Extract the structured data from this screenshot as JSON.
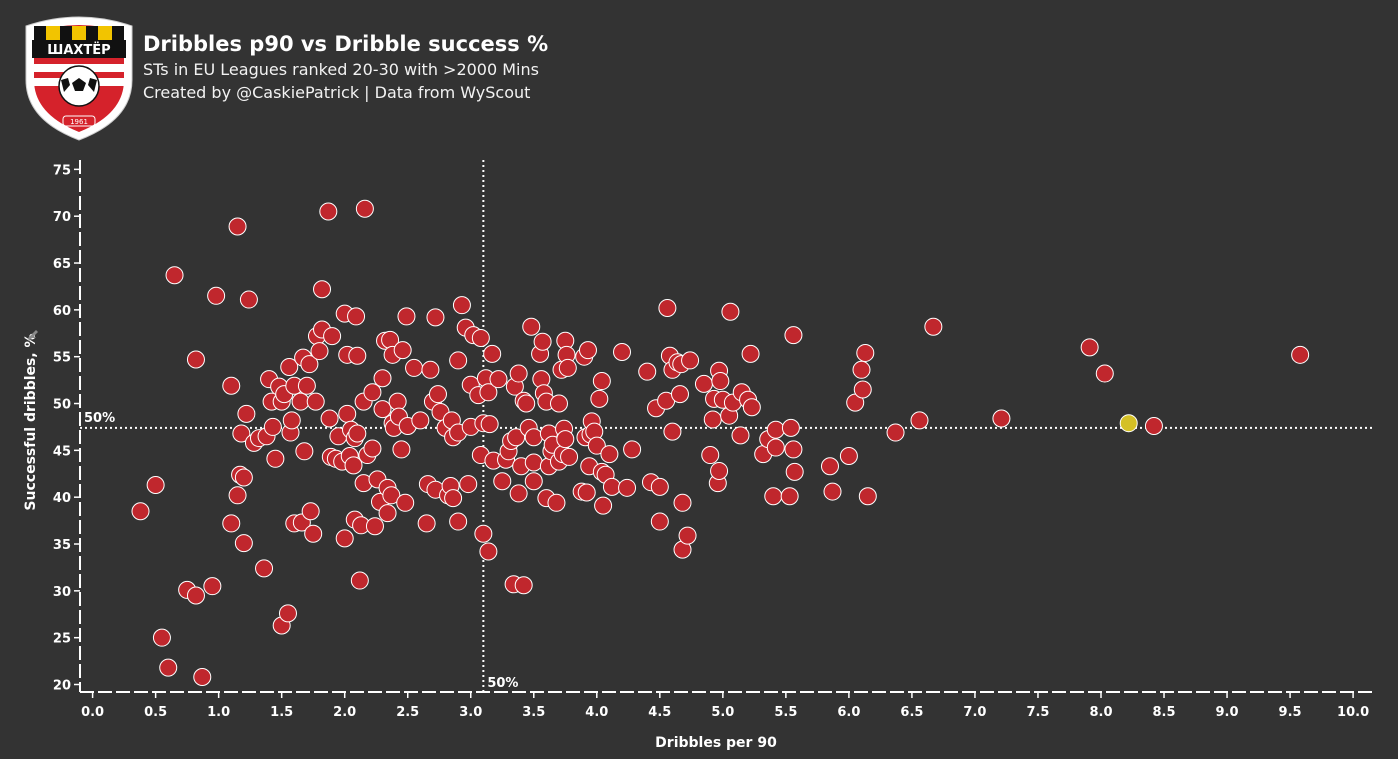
{
  "header": {
    "title": "Dribbles p90 vs Dribble success %",
    "subtitle": "STs in EU Leagues ranked 20-30 with >2000 Mins",
    "credit": "Created by @CaskiePatrick | Data from WyScout"
  },
  "logo": {
    "wordmark": "ШАХТЁР",
    "year": "1961"
  },
  "colors": {
    "background": "#333333",
    "point": "#c0272d",
    "highlight": "#d4c026",
    "axis": "#ffffff"
  },
  "chart_data": {
    "type": "scatter",
    "xlabel": "Dribbles per 90",
    "ylabel": "Successful dribbles, %",
    "xlim": [
      -0.1,
      10.15
    ],
    "ylim": [
      19.2,
      76
    ],
    "xticks": [
      "0.0",
      "0.5",
      "1.0",
      "1.5",
      "2.0",
      "2.5",
      "3.0",
      "3.5",
      "4.0",
      "4.5",
      "5.0",
      "5.5",
      "6.0",
      "6.5",
      "7.0",
      "7.5",
      "8.0",
      "8.5",
      "9.0",
      "9.5",
      "10.0"
    ],
    "yticks": [
      "20",
      "25",
      "30",
      "35",
      "40",
      "45",
      "50",
      "55",
      "60",
      "65",
      "70",
      "75"
    ],
    "reference_lines": [
      {
        "axis": "x",
        "value": 3.1,
        "label": "50%"
      },
      {
        "axis": "y",
        "value": 47.4,
        "label": "50%"
      }
    ],
    "highlight": {
      "x": 8.22,
      "y": 47.9
    },
    "points": [
      [
        0.38,
        38.5
      ],
      [
        0.5,
        41.3
      ],
      [
        0.55,
        25.0
      ],
      [
        0.6,
        21.8
      ],
      [
        0.65,
        63.7
      ],
      [
        0.75,
        30.1
      ],
      [
        0.82,
        54.7
      ],
      [
        0.82,
        29.5
      ],
      [
        0.87,
        20.8
      ],
      [
        0.95,
        30.5
      ],
      [
        0.98,
        61.5
      ],
      [
        1.1,
        51.9
      ],
      [
        1.1,
        37.2
      ],
      [
        1.15,
        68.9
      ],
      [
        1.15,
        40.2
      ],
      [
        1.17,
        42.4
      ],
      [
        1.18,
        46.8
      ],
      [
        1.2,
        42.1
      ],
      [
        1.2,
        35.1
      ],
      [
        1.22,
        48.9
      ],
      [
        1.24,
        61.1
      ],
      [
        1.28,
        45.8
      ],
      [
        1.32,
        46.3
      ],
      [
        1.36,
        32.4
      ],
      [
        1.38,
        46.5
      ],
      [
        1.4,
        52.6
      ],
      [
        1.42,
        50.2
      ],
      [
        1.43,
        47.5
      ],
      [
        1.45,
        44.1
      ],
      [
        1.48,
        51.8
      ],
      [
        1.5,
        50.2
      ],
      [
        1.5,
        26.3
      ],
      [
        1.52,
        51.0
      ],
      [
        1.55,
        27.6
      ],
      [
        1.56,
        53.9
      ],
      [
        1.57,
        46.9
      ],
      [
        1.58,
        48.2
      ],
      [
        1.6,
        51.9
      ],
      [
        1.6,
        37.2
      ],
      [
        1.65,
        50.2
      ],
      [
        1.66,
        37.3
      ],
      [
        1.67,
        54.9
      ],
      [
        1.68,
        44.9
      ],
      [
        1.7,
        51.9
      ],
      [
        1.72,
        54.2
      ],
      [
        1.73,
        38.5
      ],
      [
        1.75,
        36.1
      ],
      [
        1.77,
        50.2
      ],
      [
        1.78,
        57.2
      ],
      [
        1.8,
        55.6
      ],
      [
        1.82,
        62.2
      ],
      [
        1.82,
        57.9
      ],
      [
        1.87,
        70.5
      ],
      [
        1.88,
        48.4
      ],
      [
        1.89,
        44.3
      ],
      [
        1.9,
        57.2
      ],
      [
        1.93,
        44.1
      ],
      [
        1.95,
        46.5
      ],
      [
        1.98,
        43.8
      ],
      [
        2.0,
        35.6
      ],
      [
        2.0,
        59.6
      ],
      [
        2.02,
        55.2
      ],
      [
        2.02,
        48.9
      ],
      [
        2.04,
        44.4
      ],
      [
        2.05,
        47.2
      ],
      [
        2.07,
        43.4
      ],
      [
        2.08,
        37.6
      ],
      [
        2.08,
        46.3
      ],
      [
        2.09,
        59.3
      ],
      [
        2.1,
        46.8
      ],
      [
        2.1,
        55.1
      ],
      [
        2.12,
        31.1
      ],
      [
        2.13,
        37.0
      ],
      [
        2.15,
        41.5
      ],
      [
        2.15,
        50.2
      ],
      [
        2.16,
        70.8
      ],
      [
        2.18,
        44.5
      ],
      [
        2.22,
        45.2
      ],
      [
        2.22,
        51.2
      ],
      [
        2.24,
        36.9
      ],
      [
        2.26,
        41.9
      ],
      [
        2.28,
        39.5
      ],
      [
        2.3,
        52.7
      ],
      [
        2.3,
        49.4
      ],
      [
        2.32,
        56.7
      ],
      [
        2.34,
        38.3
      ],
      [
        2.34,
        41.0
      ],
      [
        2.36,
        56.8
      ],
      [
        2.37,
        40.2
      ],
      [
        2.38,
        47.9
      ],
      [
        2.38,
        55.2
      ],
      [
        2.39,
        47.4
      ],
      [
        2.42,
        50.2
      ],
      [
        2.43,
        48.6
      ],
      [
        2.45,
        45.1
      ],
      [
        2.46,
        55.7
      ],
      [
        2.48,
        39.4
      ],
      [
        2.49,
        59.3
      ],
      [
        2.5,
        47.6
      ],
      [
        2.55,
        53.8
      ],
      [
        2.6,
        48.2
      ],
      [
        2.65,
        37.2
      ],
      [
        2.66,
        41.4
      ],
      [
        2.68,
        53.6
      ],
      [
        2.7,
        50.2
      ],
      [
        2.72,
        59.2
      ],
      [
        2.72,
        40.8
      ],
      [
        2.74,
        51.0
      ],
      [
        2.76,
        49.1
      ],
      [
        2.8,
        47.4
      ],
      [
        2.82,
        40.2
      ],
      [
        2.84,
        41.2
      ],
      [
        2.85,
        48.2
      ],
      [
        2.86,
        39.9
      ],
      [
        2.86,
        46.4
      ],
      [
        2.9,
        37.4
      ],
      [
        2.9,
        54.6
      ],
      [
        2.9,
        46.9
      ],
      [
        2.93,
        60.5
      ],
      [
        2.96,
        58.1
      ],
      [
        2.98,
        41.4
      ],
      [
        3.0,
        52.0
      ],
      [
        3.0,
        47.5
      ],
      [
        3.02,
        57.3
      ],
      [
        3.06,
        50.9
      ],
      [
        3.08,
        44.5
      ],
      [
        3.08,
        57.0
      ],
      [
        3.1,
        47.9
      ],
      [
        3.1,
        36.1
      ],
      [
        3.12,
        52.7
      ],
      [
        3.14,
        51.2
      ],
      [
        3.14,
        34.2
      ],
      [
        3.15,
        47.8
      ],
      [
        3.17,
        55.3
      ],
      [
        3.18,
        43.9
      ],
      [
        3.22,
        52.6
      ],
      [
        3.25,
        41.7
      ],
      [
        3.28,
        44.0
      ],
      [
        3.3,
        44.9
      ],
      [
        3.32,
        46.0
      ],
      [
        3.34,
        30.7
      ],
      [
        3.35,
        51.8
      ],
      [
        3.36,
        46.4
      ],
      [
        3.38,
        40.4
      ],
      [
        3.38,
        53.2
      ],
      [
        3.4,
        43.3
      ],
      [
        3.42,
        50.3
      ],
      [
        3.42,
        30.6
      ],
      [
        3.44,
        50.0
      ],
      [
        3.46,
        47.4
      ],
      [
        3.48,
        58.2
      ],
      [
        3.5,
        46.4
      ],
      [
        3.5,
        43.7
      ],
      [
        3.5,
        41.7
      ],
      [
        3.55,
        55.3
      ],
      [
        3.56,
        52.6
      ],
      [
        3.57,
        56.6
      ],
      [
        3.58,
        51.1
      ],
      [
        3.6,
        39.9
      ],
      [
        3.6,
        50.2
      ],
      [
        3.62,
        46.8
      ],
      [
        3.62,
        43.3
      ],
      [
        3.64,
        44.9
      ],
      [
        3.65,
        45.6
      ],
      [
        3.68,
        39.4
      ],
      [
        3.7,
        50.0
      ],
      [
        3.7,
        43.8
      ],
      [
        3.72,
        53.6
      ],
      [
        3.73,
        44.6
      ],
      [
        3.74,
        47.3
      ],
      [
        3.75,
        56.7
      ],
      [
        3.75,
        46.2
      ],
      [
        3.76,
        55.2
      ],
      [
        3.77,
        53.8
      ],
      [
        3.78,
        44.3
      ],
      [
        3.88,
        40.6
      ],
      [
        3.9,
        55.0
      ],
      [
        3.91,
        46.4
      ],
      [
        3.92,
        40.5
      ],
      [
        3.93,
        55.7
      ],
      [
        3.94,
        43.3
      ],
      [
        3.95,
        46.7
      ],
      [
        3.96,
        48.1
      ],
      [
        3.98,
        47.0
      ],
      [
        4.0,
        45.5
      ],
      [
        4.02,
        50.5
      ],
      [
        4.04,
        52.4
      ],
      [
        4.04,
        42.7
      ],
      [
        4.05,
        39.1
      ],
      [
        4.07,
        42.4
      ],
      [
        4.1,
        44.6
      ],
      [
        4.12,
        41.1
      ],
      [
        4.2,
        55.5
      ],
      [
        4.24,
        41.0
      ],
      [
        4.28,
        45.1
      ],
      [
        4.4,
        53.4
      ],
      [
        4.43,
        41.6
      ],
      [
        4.47,
        49.5
      ],
      [
        4.5,
        41.1
      ],
      [
        4.5,
        37.4
      ],
      [
        4.55,
        50.3
      ],
      [
        4.56,
        60.2
      ],
      [
        4.58,
        55.1
      ],
      [
        4.6,
        47.0
      ],
      [
        4.6,
        53.6
      ],
      [
        4.64,
        54.4
      ],
      [
        4.66,
        51.0
      ],
      [
        4.67,
        54.2
      ],
      [
        4.68,
        34.4
      ],
      [
        4.68,
        39.4
      ],
      [
        4.72,
        35.9
      ],
      [
        4.74,
        54.6
      ],
      [
        4.85,
        52.1
      ],
      [
        4.9,
        44.5
      ],
      [
        4.92,
        48.3
      ],
      [
        4.93,
        50.5
      ],
      [
        4.96,
        41.5
      ],
      [
        4.97,
        42.8
      ],
      [
        4.97,
        53.5
      ],
      [
        4.98,
        52.4
      ],
      [
        5.0,
        50.4
      ],
      [
        5.05,
        48.7
      ],
      [
        5.06,
        59.8
      ],
      [
        5.08,
        50.1
      ],
      [
        5.14,
        46.6
      ],
      [
        5.15,
        51.2
      ],
      [
        5.2,
        50.4
      ],
      [
        5.22,
        55.3
      ],
      [
        5.23,
        49.6
      ],
      [
        5.32,
        44.6
      ],
      [
        5.36,
        46.2
      ],
      [
        5.4,
        40.1
      ],
      [
        5.42,
        47.2
      ],
      [
        5.42,
        45.3
      ],
      [
        5.53,
        40.1
      ],
      [
        5.54,
        47.4
      ],
      [
        5.56,
        57.3
      ],
      [
        5.56,
        45.1
      ],
      [
        5.57,
        42.7
      ],
      [
        5.85,
        43.3
      ],
      [
        5.87,
        40.6
      ],
      [
        6.0,
        44.4
      ],
      [
        6.05,
        50.1
      ],
      [
        6.1,
        53.6
      ],
      [
        6.11,
        51.5
      ],
      [
        6.13,
        55.4
      ],
      [
        6.15,
        40.1
      ],
      [
        6.37,
        46.9
      ],
      [
        6.56,
        48.2
      ],
      [
        6.67,
        58.2
      ],
      [
        7.21,
        48.4
      ],
      [
        7.91,
        56.0
      ],
      [
        8.03,
        53.2
      ],
      [
        8.42,
        47.6
      ],
      [
        9.58,
        55.2
      ]
    ]
  }
}
